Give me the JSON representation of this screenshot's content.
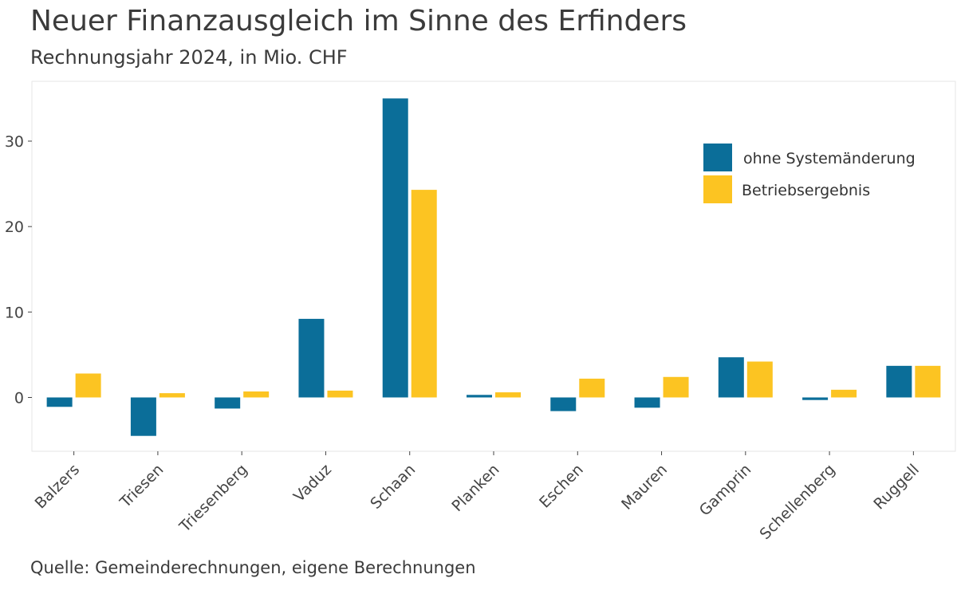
{
  "title": "Neuer Finanzausgleich im Sinne des Erfinders",
  "subtitle": "Rechnungsjahr 2024, in Mio. CHF",
  "caption": "Quelle: Gemeinderechnungen, eigene Berechnungen",
  "chart_data": {
    "type": "bar",
    "categories": [
      "Balzers",
      "Triesen",
      "Triesenberg",
      "Vaduz",
      "Schaan",
      "Planken",
      "Eschen",
      "Mauren",
      "Gamprin",
      "Schellenberg",
      "Ruggell"
    ],
    "series": [
      {
        "name": "ohne Systemänderung",
        "color": "#0b6e99",
        "values": [
          -1.1,
          -4.5,
          -1.3,
          9.2,
          35.0,
          0.3,
          -1.6,
          -1.2,
          4.7,
          -0.3,
          3.7
        ]
      },
      {
        "name": "Betriebsergebnis",
        "color": "#fcc422",
        "values": [
          2.8,
          0.5,
          0.7,
          0.8,
          24.3,
          0.6,
          2.2,
          2.4,
          4.2,
          0.9,
          3.7
        ]
      }
    ],
    "yticks": [
      0,
      10,
      20,
      30
    ],
    "ylim": [
      -6.3,
      37.0
    ],
    "legend_position": "top-right",
    "grid": false
  }
}
